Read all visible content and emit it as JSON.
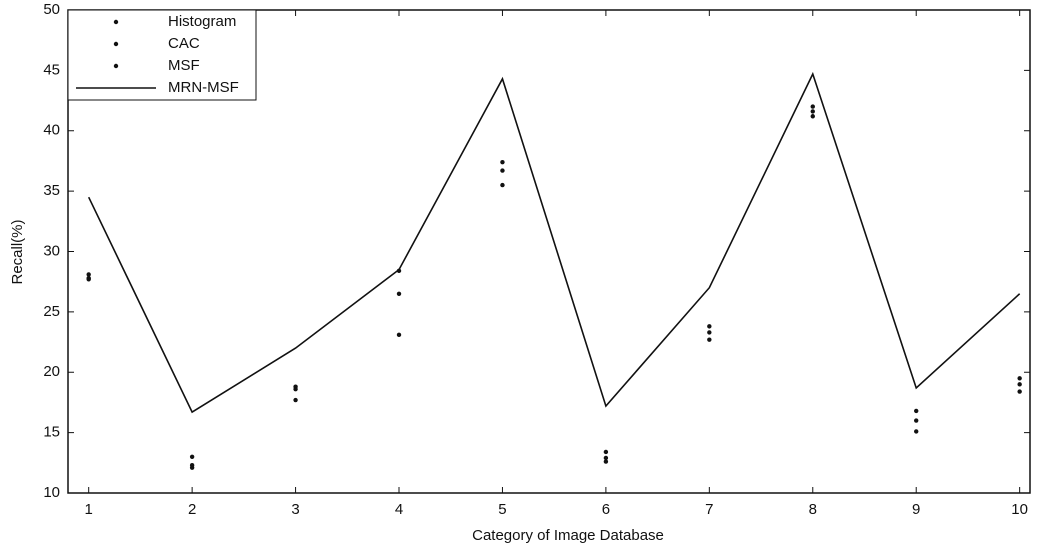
{
  "chart_data": {
    "type": "line",
    "x_label": "Category of Image Database",
    "y_label": "Recall(%)",
    "x": [
      1,
      2,
      3,
      4,
      5,
      6,
      7,
      8,
      9,
      10
    ],
    "xlim": [
      0.8,
      10.1
    ],
    "xticks": [
      1,
      2,
      3,
      4,
      5,
      6,
      7,
      8,
      9,
      10
    ],
    "ylim": [
      10,
      50
    ],
    "yticks": [
      10,
      15,
      20,
      25,
      30,
      35,
      40,
      45,
      50
    ],
    "legend": "upper left",
    "series": [
      {
        "name": "Histogram",
        "color": "#111111",
        "style": "markers",
        "values": [
          28.1,
          13.0,
          18.8,
          28.4,
          37.4,
          13.4,
          23.8,
          42.0,
          16.8,
          19.5
        ]
      },
      {
        "name": "CAC",
        "color": "#111111",
        "style": "markers",
        "values": [
          27.8,
          12.3,
          18.6,
          26.5,
          36.7,
          12.9,
          23.3,
          41.6,
          16.0,
          19.0
        ]
      },
      {
        "name": "MSF",
        "color": "#111111",
        "style": "markers",
        "values": [
          27.7,
          12.1,
          17.7,
          23.1,
          35.5,
          12.6,
          22.7,
          41.2,
          15.1,
          18.4
        ]
      },
      {
        "name": "MRN-MSF",
        "color": "#111111",
        "style": "line",
        "values": [
          34.5,
          16.7,
          22.0,
          28.5,
          44.3,
          17.2,
          27.0,
          44.7,
          18.7,
          26.5
        ]
      }
    ]
  }
}
